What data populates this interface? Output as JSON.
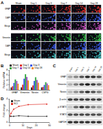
{
  "figure": {
    "panel_labels": [
      "A",
      "B",
      "C",
      "D"
    ],
    "microscopy": {
      "columns": [
        "Sham",
        "Day 1",
        "Day 3",
        "Day 7",
        "Day 14",
        "Day 28"
      ],
      "blocks": [
        {
          "rows": [
            {
              "label": "GFAP",
              "color": "#e0302a"
            },
            {
              "label": "DAPI",
              "color": "#3a5ae8"
            },
            {
              "label": "Merge",
              "color": "#c850c0"
            }
          ]
        },
        {
          "rows": [
            {
              "label": "Vimentin",
              "color": "#36c24a"
            },
            {
              "label": "DAPI",
              "color": "#3a5ae8"
            },
            {
              "label": "Merge",
              "color": "#40b8b8"
            }
          ]
        }
      ]
    },
    "blot": {
      "lanes": [
        "Sham",
        "Day 1",
        "Day 3",
        "Day 7",
        "Day 14",
        "Day 28"
      ],
      "rows": [
        {
          "label": "GFAP",
          "intensity": [
            0.3,
            0.45,
            0.7,
            0.9,
            0.85,
            0.7
          ]
        },
        {
          "label": "Vimentin",
          "intensity": [
            0.25,
            0.5,
            0.8,
            0.95,
            0.8,
            0.6
          ]
        },
        {
          "label": "Nestin",
          "intensity": [
            0.2,
            0.4,
            0.65,
            0.85,
            0.7,
            0.5
          ]
        },
        {
          "label": "β-actin",
          "intensity": [
            0.8,
            0.8,
            0.8,
            0.8,
            0.8,
            0.8
          ]
        },
        {
          "label": "p-STAT3",
          "intensity": [
            0.15,
            0.6,
            0.85,
            0.7,
            0.5,
            0.35
          ]
        },
        {
          "label": "STAT3",
          "intensity": [
            0.7,
            0.72,
            0.75,
            0.74,
            0.72,
            0.7
          ]
        },
        {
          "label": "GAPDH",
          "intensity": [
            0.85,
            0.85,
            0.85,
            0.85,
            0.85,
            0.85
          ]
        }
      ]
    }
  },
  "chart_data": [
    {
      "type": "bar",
      "categories": [
        "GFAP",
        "Vimentin",
        "Nestin",
        "CSPG"
      ],
      "series": [
        {
          "name": "Sham",
          "color": "#222222",
          "values": [
            1,
            1,
            1,
            1
          ]
        },
        {
          "name": "Day 1",
          "color": "#e0302a",
          "values": [
            1.5,
            2.1,
            1.8,
            1.2
          ]
        },
        {
          "name": "Day 3",
          "color": "#3a5ae8",
          "values": [
            2.8,
            4.5,
            3.6,
            2.0
          ]
        },
        {
          "name": "Day 7",
          "color": "#36a845",
          "values": [
            4.2,
            6.3,
            5.1,
            3.1
          ]
        },
        {
          "name": "Day 14",
          "color": "#9b4fc0",
          "values": [
            3.6,
            5.2,
            4.0,
            2.6
          ]
        },
        {
          "name": "Day 28",
          "color": "#f08a24",
          "values": [
            2.5,
            3.8,
            2.9,
            1.9
          ]
        }
      ],
      "ylabel": "Relative mRNA",
      "ylim": [
        0,
        8
      ],
      "yticks": [
        0,
        2,
        4,
        6,
        8
      ],
      "legend": "top"
    },
    {
      "type": "line",
      "x": [
        0,
        1,
        3,
        7,
        14,
        28
      ],
      "series": [
        {
          "name": "Sham",
          "color": "#333333",
          "values": [
            1,
            1,
            1,
            1.1,
            1,
            1
          ]
        },
        {
          "name": "SCI",
          "color": "#e0302a",
          "values": [
            1,
            1.5,
            2.2,
            2.7,
            3,
            3.1
          ]
        }
      ],
      "xlabel": "Days",
      "ylabel": "Fold change",
      "xlim": [
        0,
        30
      ],
      "xticks": [
        0,
        10,
        20,
        30
      ],
      "ylim": [
        0,
        4
      ],
      "yticks": [
        0,
        2,
        4
      ],
      "marker": "circle",
      "legend": "top-left"
    }
  ]
}
